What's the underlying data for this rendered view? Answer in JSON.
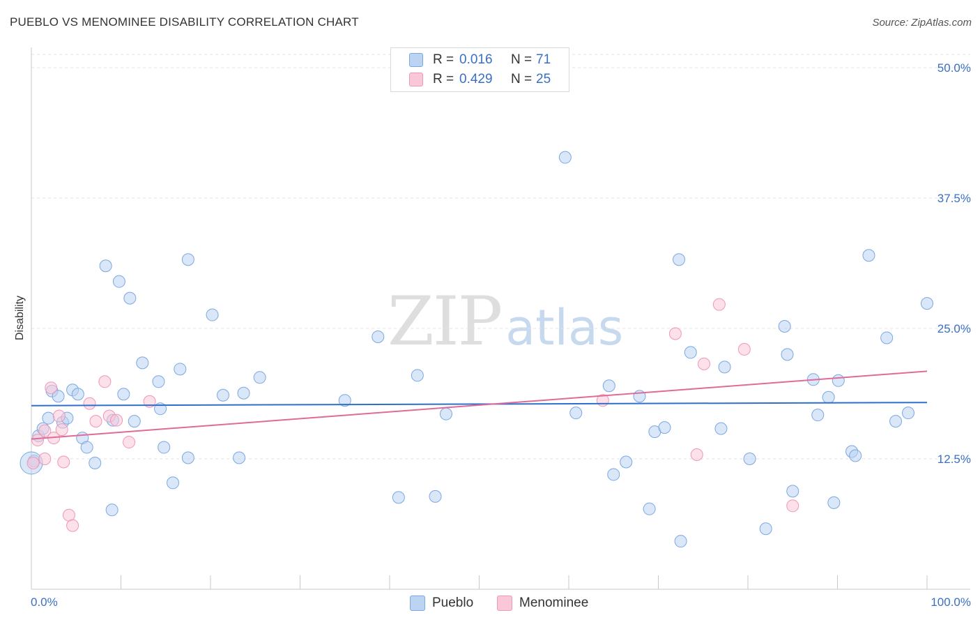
{
  "title": "PUEBLO VS MENOMINEE DISABILITY CORRELATION CHART",
  "source": "Source: ZipAtlas.com",
  "watermark": {
    "zip": "ZIP",
    "atlas": "atlas"
  },
  "legend_top": [
    {
      "r_label": "R =",
      "r_value": "0.016",
      "n_label": "N =",
      "n_value": "71"
    },
    {
      "r_label": "R =",
      "r_value": "0.429",
      "n_label": "N =",
      "n_value": "25"
    }
  ],
  "colors": {
    "pueblo_fill": "#bcd4f2",
    "pueblo_stroke": "#7aa8e0",
    "pueblo_line": "#2f6fcc",
    "menominee_fill": "#fac7d8",
    "menominee_stroke": "#ef97b6",
    "menominee_line": "#e06b98",
    "axis_label": "#3a70c4",
    "grid": "#e3e3e3"
  },
  "chart_data": {
    "type": "scatter",
    "title": "PUEBLO VS MENOMINEE DISABILITY CORRELATION CHART",
    "xlabel": "",
    "ylabel": "Disability",
    "xlim": [
      0,
      100
    ],
    "ylim": [
      0,
      50
    ],
    "x_tick_labels": [
      "0.0%",
      "100.0%"
    ],
    "y_ticks": [
      12.5,
      25.0,
      37.5,
      50.0
    ],
    "y_tick_labels": [
      "12.5%",
      "25.0%",
      "37.5%",
      "50.0%"
    ],
    "grid": "horizontal dashed",
    "legend_position": "top-center",
    "series": [
      {
        "name": "Pueblo",
        "r": 0.016,
        "n": 71,
        "trend": [
          [
            0,
            17.6
          ],
          [
            100,
            17.9
          ]
        ],
        "points": [
          [
            0.3,
            12.3
          ],
          [
            0.8,
            14.7
          ],
          [
            1.3,
            15.4
          ],
          [
            1.9,
            16.4
          ],
          [
            2.3,
            19.0
          ],
          [
            3.0,
            18.5
          ],
          [
            3.5,
            16.0
          ],
          [
            4.0,
            16.4
          ],
          [
            4.6,
            19.1
          ],
          [
            5.2,
            18.7
          ],
          [
            5.7,
            14.5
          ],
          [
            6.2,
            13.6
          ],
          [
            7.1,
            12.1
          ],
          [
            8.3,
            31.0
          ],
          [
            9.0,
            7.6
          ],
          [
            9.1,
            16.2
          ],
          [
            9.8,
            29.5
          ],
          [
            10.3,
            18.7
          ],
          [
            11.0,
            27.9
          ],
          [
            11.5,
            16.1
          ],
          [
            12.4,
            21.7
          ],
          [
            14.2,
            19.9
          ],
          [
            14.4,
            17.3
          ],
          [
            14.8,
            13.6
          ],
          [
            15.8,
            10.2
          ],
          [
            16.6,
            21.1
          ],
          [
            17.5,
            12.6
          ],
          [
            17.5,
            31.6
          ],
          [
            20.2,
            26.3
          ],
          [
            21.4,
            18.6
          ],
          [
            23.2,
            12.6
          ],
          [
            23.7,
            18.8
          ],
          [
            25.5,
            20.3
          ],
          [
            35.0,
            18.1
          ],
          [
            38.7,
            24.2
          ],
          [
            41.0,
            8.8
          ],
          [
            43.1,
            20.5
          ],
          [
            45.1,
            8.9
          ],
          [
            46.3,
            16.8
          ],
          [
            59.6,
            41.4
          ],
          [
            60.8,
            16.9
          ],
          [
            64.5,
            19.5
          ],
          [
            65.0,
            11.0
          ],
          [
            66.4,
            12.2
          ],
          [
            67.9,
            18.5
          ],
          [
            69.0,
            7.7
          ],
          [
            69.6,
            15.1
          ],
          [
            70.7,
            15.5
          ],
          [
            72.3,
            31.6
          ],
          [
            72.5,
            4.6
          ],
          [
            73.6,
            22.7
          ],
          [
            77.0,
            15.4
          ],
          [
            77.4,
            21.3
          ],
          [
            80.2,
            12.5
          ],
          [
            82.0,
            5.8
          ],
          [
            84.1,
            25.2
          ],
          [
            84.4,
            22.5
          ],
          [
            85.0,
            9.4
          ],
          [
            87.3,
            20.1
          ],
          [
            87.8,
            16.7
          ],
          [
            89.0,
            18.4
          ],
          [
            89.6,
            8.3
          ],
          [
            90.1,
            20.0
          ],
          [
            91.6,
            13.2
          ],
          [
            92.0,
            12.8
          ],
          [
            93.5,
            32.0
          ],
          [
            95.5,
            24.1
          ],
          [
            96.5,
            16.1
          ],
          [
            97.9,
            16.9
          ],
          [
            100.0,
            27.4
          ],
          [
            0.0,
            12.1
          ]
        ]
      },
      {
        "name": "Menominee",
        "r": 0.429,
        "n": 25,
        "trend": [
          [
            0,
            14.4
          ],
          [
            100,
            20.9
          ]
        ],
        "points": [
          [
            0.2,
            12.1
          ],
          [
            0.7,
            14.3
          ],
          [
            1.5,
            15.2
          ],
          [
            1.5,
            12.5
          ],
          [
            2.2,
            19.3
          ],
          [
            2.5,
            14.5
          ],
          [
            3.1,
            16.6
          ],
          [
            3.4,
            15.3
          ],
          [
            3.6,
            12.2
          ],
          [
            4.2,
            7.1
          ],
          [
            4.6,
            6.1
          ],
          [
            6.5,
            17.8
          ],
          [
            7.2,
            16.1
          ],
          [
            8.2,
            19.9
          ],
          [
            8.7,
            16.6
          ],
          [
            9.5,
            16.2
          ],
          [
            10.9,
            14.1
          ],
          [
            13.2,
            18.0
          ],
          [
            63.8,
            18.1
          ],
          [
            71.9,
            24.5
          ],
          [
            75.1,
            21.6
          ],
          [
            76.8,
            27.3
          ],
          [
            79.6,
            23.0
          ],
          [
            74.3,
            12.9
          ],
          [
            85.0,
            8.0
          ]
        ]
      }
    ]
  }
}
